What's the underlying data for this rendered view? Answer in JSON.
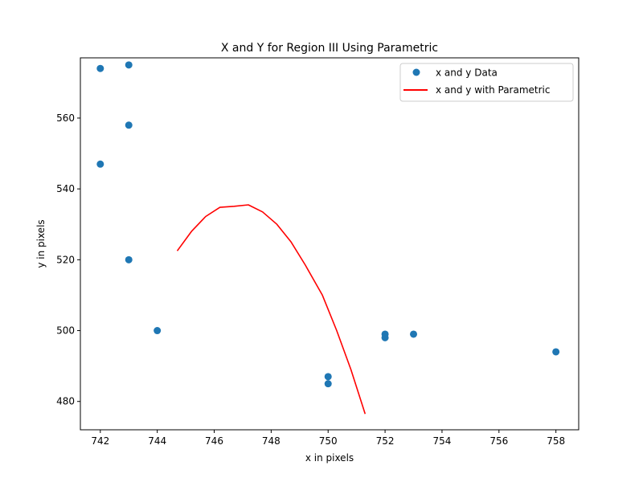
{
  "chart_data": {
    "type": "scatter",
    "title": "X and Y for Region III Using Parametric",
    "xlabel": "x in pixels",
    "ylabel": "y in pixels",
    "xlim": [
      741.3,
      758.8
    ],
    "ylim": [
      472,
      577
    ],
    "xticks": [
      742,
      744,
      746,
      748,
      750,
      752,
      754,
      756,
      758
    ],
    "yticks": [
      480,
      500,
      520,
      540,
      560
    ],
    "grid": false,
    "legend_position": "top-right",
    "series": [
      {
        "name": "x and y Data",
        "kind": "scatter",
        "color": "#1f77b4",
        "points": [
          {
            "x": 742,
            "y": 574
          },
          {
            "x": 743,
            "y": 575
          },
          {
            "x": 743,
            "y": 558
          },
          {
            "x": 742,
            "y": 547
          },
          {
            "x": 743,
            "y": 520
          },
          {
            "x": 744,
            "y": 500
          },
          {
            "x": 750,
            "y": 487
          },
          {
            "x": 750,
            "y": 485
          },
          {
            "x": 752,
            "y": 499
          },
          {
            "x": 752,
            "y": 498
          },
          {
            "x": 753,
            "y": 499
          },
          {
            "x": 758,
            "y": 494
          }
        ]
      },
      {
        "name": "x and y with Parametric",
        "kind": "line",
        "color": "#ff0000",
        "points": [
          {
            "x": 744.7,
            "y": 522.5
          },
          {
            "x": 745.2,
            "y": 528.0
          },
          {
            "x": 745.7,
            "y": 532.2
          },
          {
            "x": 746.2,
            "y": 534.8
          },
          {
            "x": 746.7,
            "y": 535.1
          },
          {
            "x": 747.2,
            "y": 535.5
          },
          {
            "x": 747.7,
            "y": 533.5
          },
          {
            "x": 748.2,
            "y": 530.0
          },
          {
            "x": 748.7,
            "y": 525.0
          },
          {
            "x": 749.2,
            "y": 518.5
          },
          {
            "x": 749.8,
            "y": 510.0
          },
          {
            "x": 750.3,
            "y": 500.0
          },
          {
            "x": 750.8,
            "y": 489.0
          },
          {
            "x": 751.3,
            "y": 476.5
          }
        ]
      }
    ]
  }
}
